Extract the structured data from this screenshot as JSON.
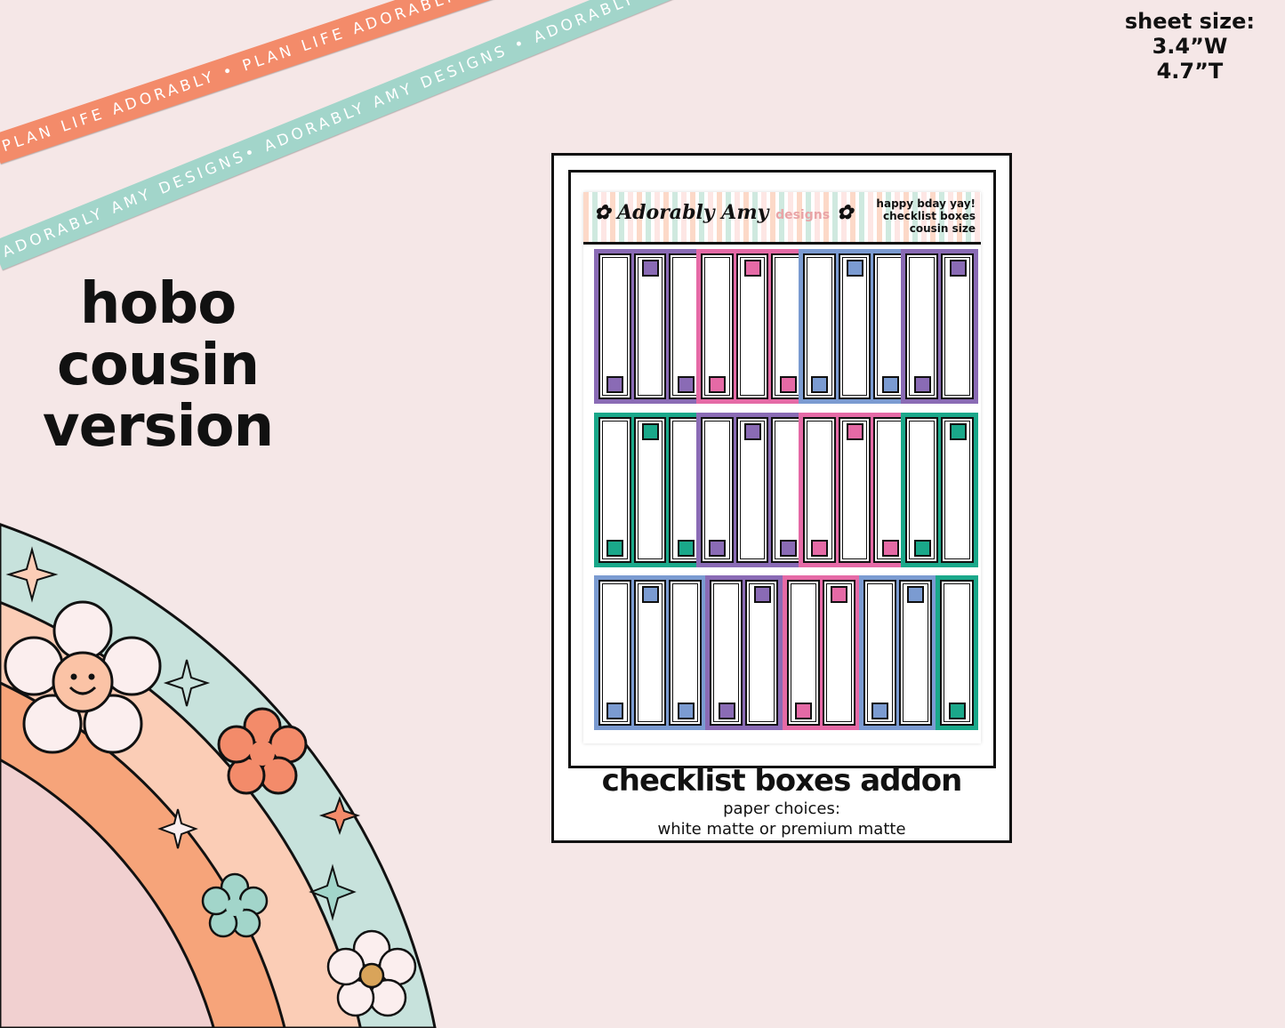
{
  "ribbons": {
    "orange": "PLAN LIFE ADORABLY • PLAN LIFE ADORABLY • PLAN LIFE ADORABLY",
    "teal": "ADORABLY AMY DESIGNS• ADORABLY AMY DESIGNS • ADORABLY AMY DESIGNS"
  },
  "sheet_size": {
    "label": "sheet size:",
    "width": "3.4”W",
    "height": "4.7”T"
  },
  "title": {
    "line1": "hobo",
    "line2": "cousin",
    "line3": "version"
  },
  "sheet": {
    "logo": "Adorably Amy",
    "logo_suffix": "designs",
    "header_lines": [
      "happy bday yay!",
      "checklist boxes",
      "cousin size"
    ],
    "colors": {
      "purple": "#8a6bb5",
      "pink": "#e56aa6",
      "blue": "#7b9bd1",
      "teal": "#1aa88a"
    },
    "rows": [
      [
        {
          "color": "purple",
          "cols": 3
        },
        {
          "color": "pink",
          "cols": 3
        },
        {
          "color": "blue",
          "cols": 3
        },
        {
          "color": "purple",
          "cols": 2
        }
      ],
      [
        {
          "color": "teal",
          "cols": 3
        },
        {
          "color": "purple",
          "cols": 3
        },
        {
          "color": "pink",
          "cols": 3
        },
        {
          "color": "teal",
          "cols": 2
        }
      ],
      [
        {
          "color": "blue",
          "cols": 3
        },
        {
          "color": "purple",
          "cols": 2
        },
        {
          "color": "pink",
          "cols": 2
        },
        {
          "color": "blue",
          "cols": 2
        },
        {
          "color": "teal",
          "cols": 1
        }
      ]
    ]
  },
  "caption": {
    "title": "checklist boxes addon",
    "sub1": "paper choices:",
    "sub2": "white matte or premium matte"
  }
}
